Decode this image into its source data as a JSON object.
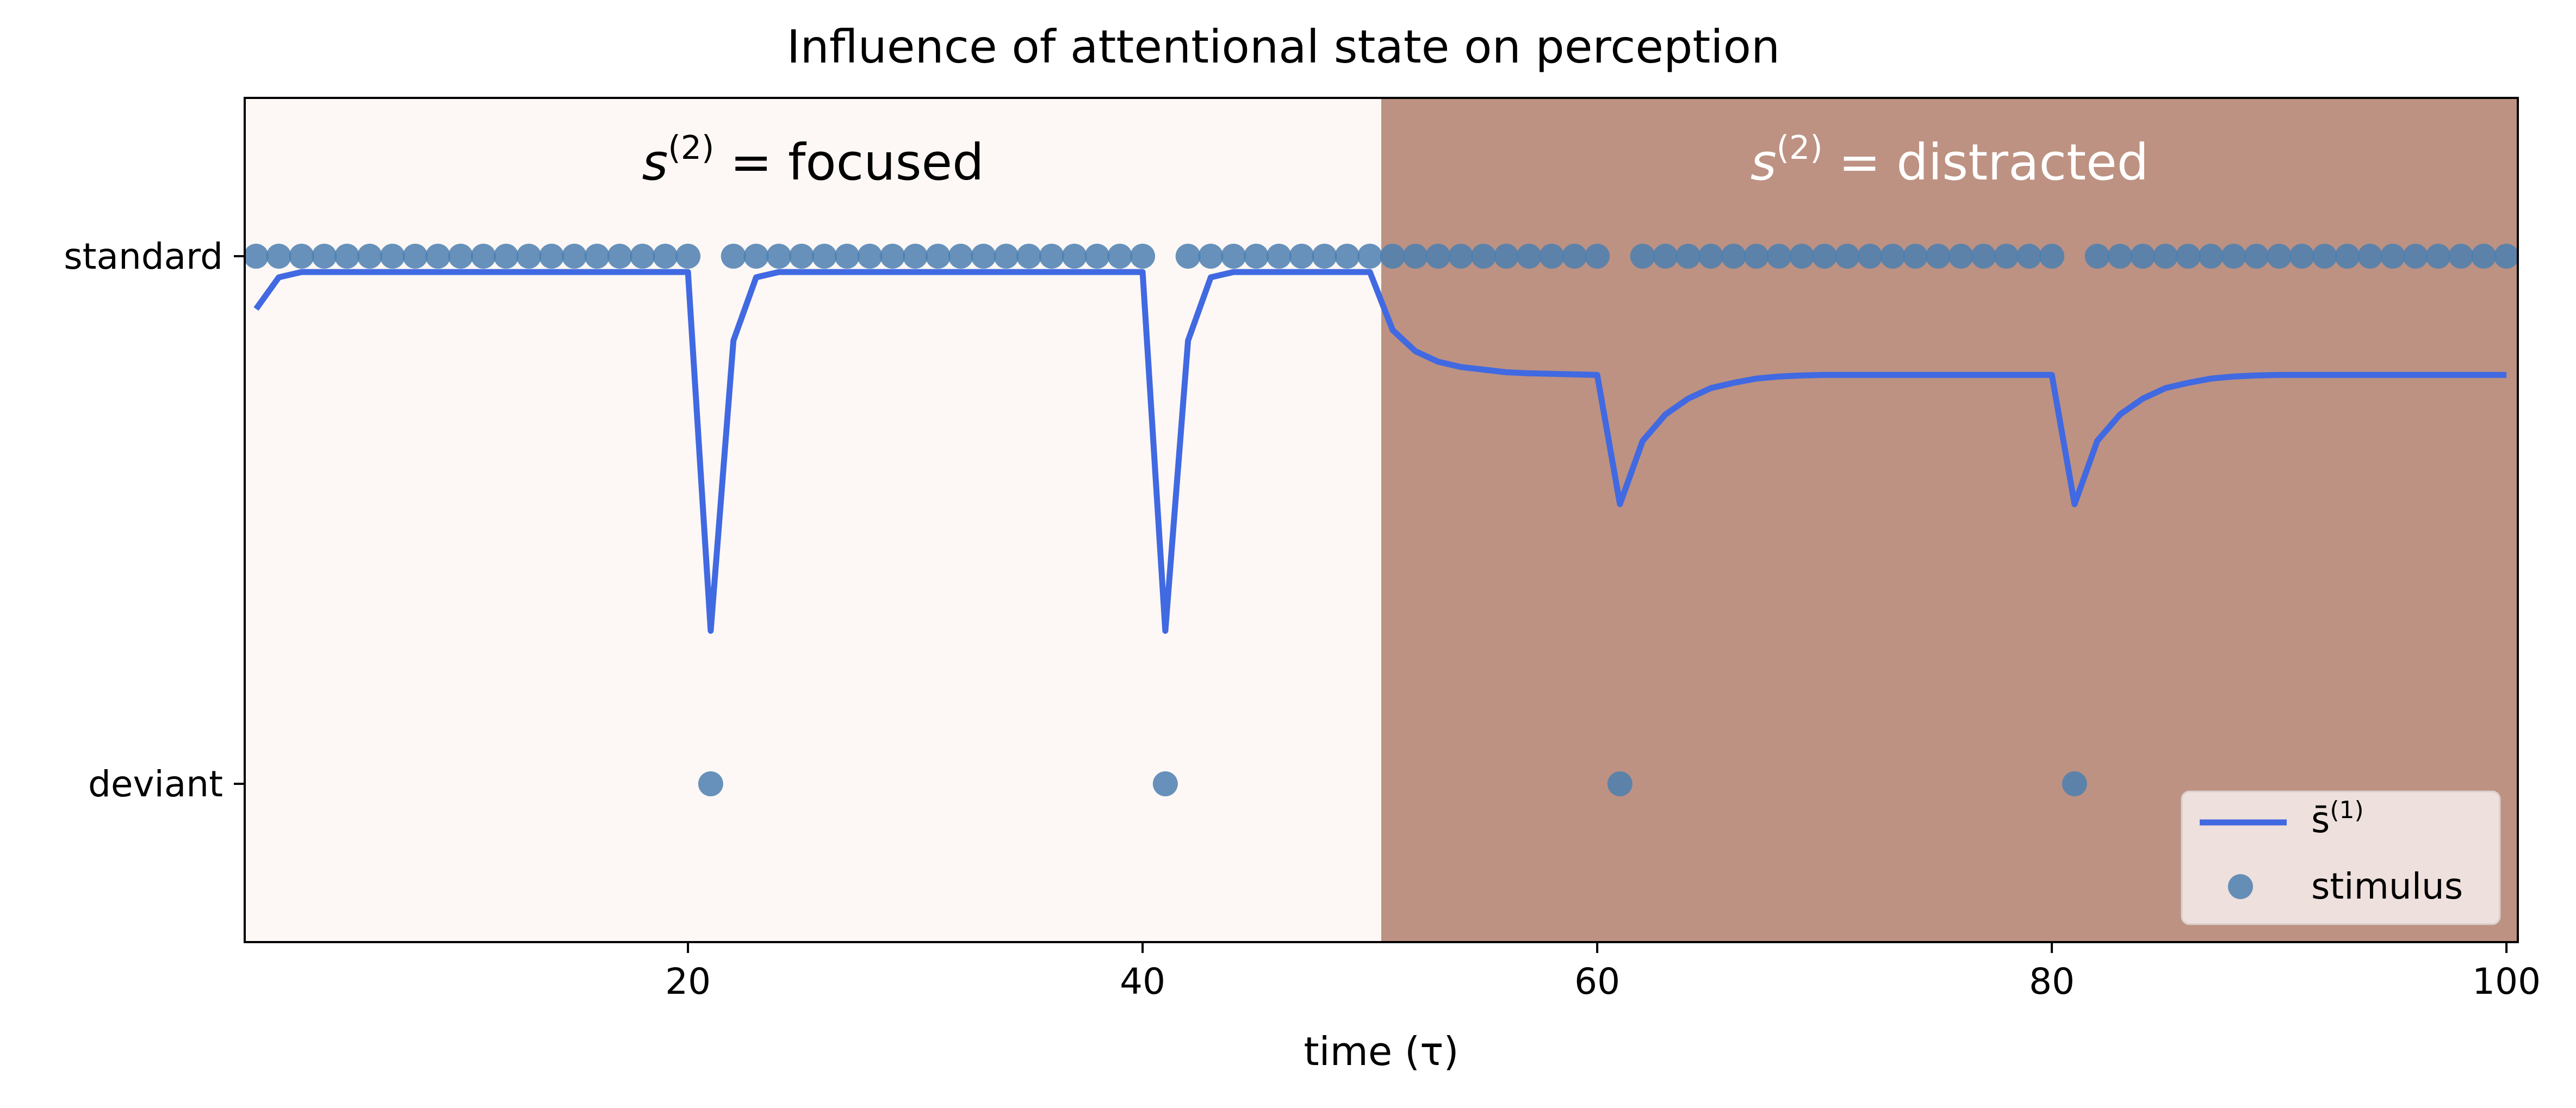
{
  "chart_data": {
    "type": "line",
    "title": "Influence of attentional state on perception",
    "xlabel": "time (τ)",
    "ylabel": "",
    "xlim": [
      0.5,
      100.5
    ],
    "ylim": [
      -0.3,
      1.3
    ],
    "x_ticks": [
      20,
      40,
      60,
      80,
      100
    ],
    "y_ticks": [
      {
        "value": 1,
        "label": "standard"
      },
      {
        "value": 0,
        "label": "deviant"
      }
    ],
    "grid": false,
    "legend_position": "bottom-right",
    "legend": {
      "line_label_main": "s̄",
      "line_label_sup": "(1)",
      "scatter_label": "stimulus"
    },
    "regions": [
      {
        "x_start": 0.5,
        "x_end": 50.5,
        "color": "#fdf8f5",
        "label_main": "s",
        "label_sup": "(2)",
        "label_rest": " = focused",
        "label_color": "#000000"
      },
      {
        "x_start": 50.5,
        "x_end": 100.5,
        "color": "#bd9282",
        "label_main": "s",
        "label_sup": "(2)",
        "label_rest": " = distracted",
        "label_color": "#ffffff"
      }
    ],
    "series": [
      {
        "name": "s̄(1)",
        "type": "line",
        "color": "#4169e1",
        "x": [
          1,
          2,
          3,
          4,
          5,
          6,
          7,
          8,
          9,
          10,
          11,
          12,
          13,
          14,
          15,
          16,
          17,
          18,
          19,
          20,
          21,
          22,
          23,
          24,
          25,
          26,
          27,
          28,
          29,
          30,
          31,
          32,
          33,
          34,
          35,
          36,
          37,
          38,
          39,
          40,
          41,
          42,
          43,
          44,
          45,
          46,
          47,
          48,
          49,
          50,
          51,
          52,
          53,
          54,
          55,
          56,
          57,
          58,
          59,
          60,
          61,
          62,
          63,
          64,
          65,
          66,
          67,
          68,
          69,
          70,
          71,
          72,
          73,
          74,
          75,
          76,
          77,
          78,
          79,
          80,
          81,
          82,
          83,
          84,
          85,
          86,
          87,
          88,
          89,
          90,
          91,
          92,
          93,
          94,
          95,
          96,
          97,
          98,
          99,
          100
        ],
        "y": [
          0.9,
          0.96,
          0.97,
          0.97,
          0.97,
          0.97,
          0.97,
          0.97,
          0.97,
          0.97,
          0.97,
          0.97,
          0.97,
          0.97,
          0.97,
          0.97,
          0.97,
          0.97,
          0.97,
          0.97,
          0.29,
          0.84,
          0.96,
          0.97,
          0.97,
          0.97,
          0.97,
          0.97,
          0.97,
          0.97,
          0.97,
          0.97,
          0.97,
          0.97,
          0.97,
          0.97,
          0.97,
          0.97,
          0.97,
          0.97,
          0.29,
          0.84,
          0.96,
          0.97,
          0.97,
          0.97,
          0.97,
          0.97,
          0.97,
          0.97,
          0.86,
          0.82,
          0.8,
          0.79,
          0.785,
          0.78,
          0.778,
          0.777,
          0.776,
          0.775,
          0.53,
          0.65,
          0.7,
          0.73,
          0.75,
          0.76,
          0.768,
          0.772,
          0.774,
          0.775,
          0.775,
          0.775,
          0.775,
          0.775,
          0.775,
          0.775,
          0.775,
          0.775,
          0.775,
          0.775,
          0.53,
          0.65,
          0.7,
          0.73,
          0.75,
          0.76,
          0.768,
          0.772,
          0.774,
          0.775,
          0.775,
          0.775,
          0.775,
          0.775,
          0.775,
          0.775,
          0.775,
          0.775,
          0.775,
          0.775
        ]
      },
      {
        "name": "stimulus",
        "type": "scatter",
        "color": "#4c7fb0",
        "x": [
          1,
          2,
          3,
          4,
          5,
          6,
          7,
          8,
          9,
          10,
          11,
          12,
          13,
          14,
          15,
          16,
          17,
          18,
          19,
          20,
          21,
          22,
          23,
          24,
          25,
          26,
          27,
          28,
          29,
          30,
          31,
          32,
          33,
          34,
          35,
          36,
          37,
          38,
          39,
          40,
          41,
          42,
          43,
          44,
          45,
          46,
          47,
          48,
          49,
          50,
          51,
          52,
          53,
          54,
          55,
          56,
          57,
          58,
          59,
          60,
          61,
          62,
          63,
          64,
          65,
          66,
          67,
          68,
          69,
          70,
          71,
          72,
          73,
          74,
          75,
          76,
          77,
          78,
          79,
          80,
          81,
          82,
          83,
          84,
          85,
          86,
          87,
          88,
          89,
          90,
          91,
          92,
          93,
          94,
          95,
          96,
          97,
          98,
          99,
          100
        ],
        "y": [
          1,
          1,
          1,
          1,
          1,
          1,
          1,
          1,
          1,
          1,
          1,
          1,
          1,
          1,
          1,
          1,
          1,
          1,
          1,
          1,
          0,
          1,
          1,
          1,
          1,
          1,
          1,
          1,
          1,
          1,
          1,
          1,
          1,
          1,
          1,
          1,
          1,
          1,
          1,
          1,
          0,
          1,
          1,
          1,
          1,
          1,
          1,
          1,
          1,
          1,
          1,
          1,
          1,
          1,
          1,
          1,
          1,
          1,
          1,
          1,
          0,
          1,
          1,
          1,
          1,
          1,
          1,
          1,
          1,
          1,
          1,
          1,
          1,
          1,
          1,
          1,
          1,
          1,
          1,
          1,
          0,
          1,
          1,
          1,
          1,
          1,
          1,
          1,
          1,
          1,
          1,
          1,
          1,
          1,
          1,
          1,
          1,
          1,
          1,
          1
        ]
      }
    ]
  }
}
